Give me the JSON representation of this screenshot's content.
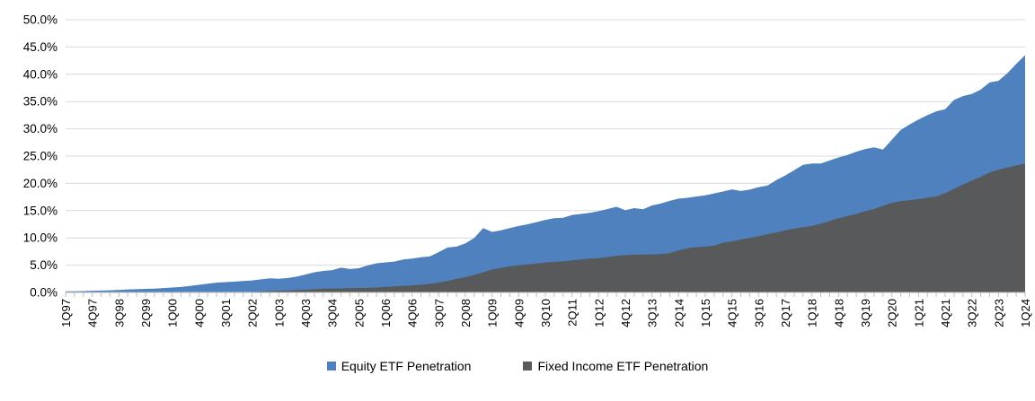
{
  "chart_data": {
    "type": "area",
    "mode": "overlapping",
    "title": "",
    "grid": "horizontal",
    "legend_position": "bottom",
    "x_label_interval": 3,
    "categories": [
      "1Q97",
      "2Q97",
      "3Q97",
      "4Q97",
      "1Q98",
      "2Q98",
      "3Q98",
      "4Q98",
      "1Q99",
      "2Q99",
      "3Q99",
      "4Q99",
      "1Q00",
      "2Q00",
      "3Q00",
      "4Q00",
      "1Q01",
      "2Q01",
      "3Q01",
      "4Q01",
      "1Q02",
      "2Q02",
      "3Q02",
      "4Q02",
      "1Q03",
      "2Q03",
      "3Q03",
      "4Q03",
      "1Q04",
      "2Q04",
      "3Q04",
      "4Q04",
      "1Q05",
      "2Q05",
      "3Q05",
      "4Q05",
      "1Q06",
      "2Q06",
      "3Q06",
      "4Q06",
      "1Q07",
      "2Q07",
      "3Q07",
      "4Q07",
      "1Q08",
      "2Q08",
      "3Q08",
      "4Q08",
      "1Q09",
      "2Q09",
      "3Q09",
      "4Q09",
      "1Q10",
      "2Q10",
      "3Q10",
      "4Q10",
      "1Q11",
      "2Q11",
      "3Q11",
      "4Q11",
      "1Q12",
      "2Q12",
      "3Q12",
      "4Q12",
      "1Q13",
      "2Q13",
      "3Q13",
      "4Q13",
      "1Q14",
      "2Q14",
      "3Q14",
      "4Q14",
      "1Q15",
      "2Q15",
      "3Q15",
      "4Q15",
      "1Q16",
      "2Q16",
      "3Q16",
      "4Q16",
      "1Q17",
      "2Q17",
      "3Q17",
      "4Q17",
      "1Q18",
      "2Q18",
      "3Q18",
      "4Q18",
      "1Q19",
      "2Q19",
      "3Q19",
      "4Q19",
      "1Q20",
      "2Q20",
      "3Q20",
      "4Q20",
      "1Q21",
      "2Q21",
      "3Q21",
      "4Q21",
      "1Q22",
      "2Q22",
      "3Q22",
      "4Q22",
      "1Q23",
      "2Q23",
      "3Q23",
      "4Q23",
      "1Q24"
    ],
    "x_labels_shown": [
      "1Q97",
      "4Q97",
      "3Q98",
      "2Q99",
      "1Q00",
      "4Q00",
      "3Q01",
      "2Q02",
      "1Q03",
      "4Q03",
      "3Q04",
      "2Q05",
      "1Q06",
      "4Q06",
      "3Q07",
      "2Q08",
      "1Q09",
      "4Q09",
      "3Q10",
      "2Q11",
      "1Q12",
      "4Q12",
      "3Q13",
      "2Q14",
      "1Q15",
      "4Q15",
      "3Q16",
      "2Q17",
      "1Q18",
      "4Q18",
      "3Q19",
      "2Q20",
      "1Q21",
      "4Q21",
      "3Q22",
      "2Q23",
      "1Q24"
    ],
    "series": [
      {
        "name": "Equity ETF Penetration",
        "color": "#4e81bd",
        "values": [
          0.2,
          0.2,
          0.25,
          0.3,
          0.35,
          0.4,
          0.45,
          0.55,
          0.6,
          0.65,
          0.7,
          0.8,
          0.9,
          1.0,
          1.2,
          1.4,
          1.6,
          1.8,
          1.9,
          2.0,
          2.1,
          2.2,
          2.4,
          2.6,
          2.5,
          2.65,
          2.9,
          3.3,
          3.7,
          3.95,
          4.1,
          4.55,
          4.3,
          4.45,
          4.95,
          5.35,
          5.5,
          5.65,
          6.05,
          6.2,
          6.45,
          6.6,
          7.4,
          8.25,
          8.4,
          9.0,
          10.0,
          11.8,
          11.1,
          11.4,
          11.8,
          12.2,
          12.5,
          12.9,
          13.3,
          13.6,
          13.7,
          14.2,
          14.4,
          14.6,
          14.9,
          15.3,
          15.7,
          15.1,
          15.45,
          15.25,
          15.95,
          16.3,
          16.8,
          17.2,
          17.35,
          17.6,
          17.8,
          18.15,
          18.5,
          18.9,
          18.6,
          18.85,
          19.3,
          19.6,
          20.6,
          21.45,
          22.4,
          23.4,
          23.65,
          23.65,
          24.2,
          24.75,
          25.2,
          25.8,
          26.3,
          26.6,
          26.2,
          28.0,
          29.8,
          30.8,
          31.7,
          32.5,
          33.2,
          33.6,
          35.3,
          36.0,
          36.4,
          37.2,
          38.5,
          38.8,
          40.2,
          41.9,
          43.5
        ]
      },
      {
        "name": "Fixed Income ETF Penetration",
        "color": "#58595b",
        "values": [
          0,
          0,
          0,
          0,
          0,
          0,
          0,
          0,
          0,
          0,
          0,
          0,
          0,
          0,
          0,
          0,
          0,
          0,
          0,
          0,
          0.05,
          0.1,
          0.15,
          0.25,
          0.3,
          0.35,
          0.45,
          0.5,
          0.6,
          0.7,
          0.72,
          0.75,
          0.8,
          0.82,
          0.85,
          0.9,
          1.0,
          1.1,
          1.2,
          1.3,
          1.4,
          1.6,
          1.8,
          2.1,
          2.5,
          2.8,
          3.2,
          3.7,
          4.2,
          4.5,
          4.8,
          5.0,
          5.15,
          5.3,
          5.5,
          5.6,
          5.7,
          5.9,
          6.05,
          6.2,
          6.3,
          6.5,
          6.7,
          6.85,
          6.9,
          6.95,
          7.0,
          7.05,
          7.2,
          7.7,
          8.1,
          8.3,
          8.4,
          8.6,
          9.1,
          9.35,
          9.7,
          10.0,
          10.3,
          10.7,
          11.0,
          11.4,
          11.7,
          11.95,
          12.2,
          12.6,
          13.1,
          13.6,
          14.0,
          14.4,
          14.9,
          15.3,
          15.9,
          16.4,
          16.75,
          16.9,
          17.1,
          17.35,
          17.6,
          18.2,
          19.0,
          19.8,
          20.5,
          21.2,
          22.0,
          22.5,
          22.9,
          23.3,
          23.6
        ]
      }
    ],
    "y_axis": {
      "min": 0,
      "max": 50,
      "step": 5,
      "tick_labels": [
        "0.0%",
        "5.0%",
        "10.0%",
        "15.0%",
        "20.0%",
        "25.0%",
        "30.0%",
        "35.0%",
        "40.0%",
        "45.0%",
        "50.0%"
      ]
    }
  },
  "style": {
    "gridline_color": "#d9d9d9",
    "axis_color": "#bfbfbf",
    "tick_color": "#bfbfbf",
    "label_color": "#000000"
  }
}
